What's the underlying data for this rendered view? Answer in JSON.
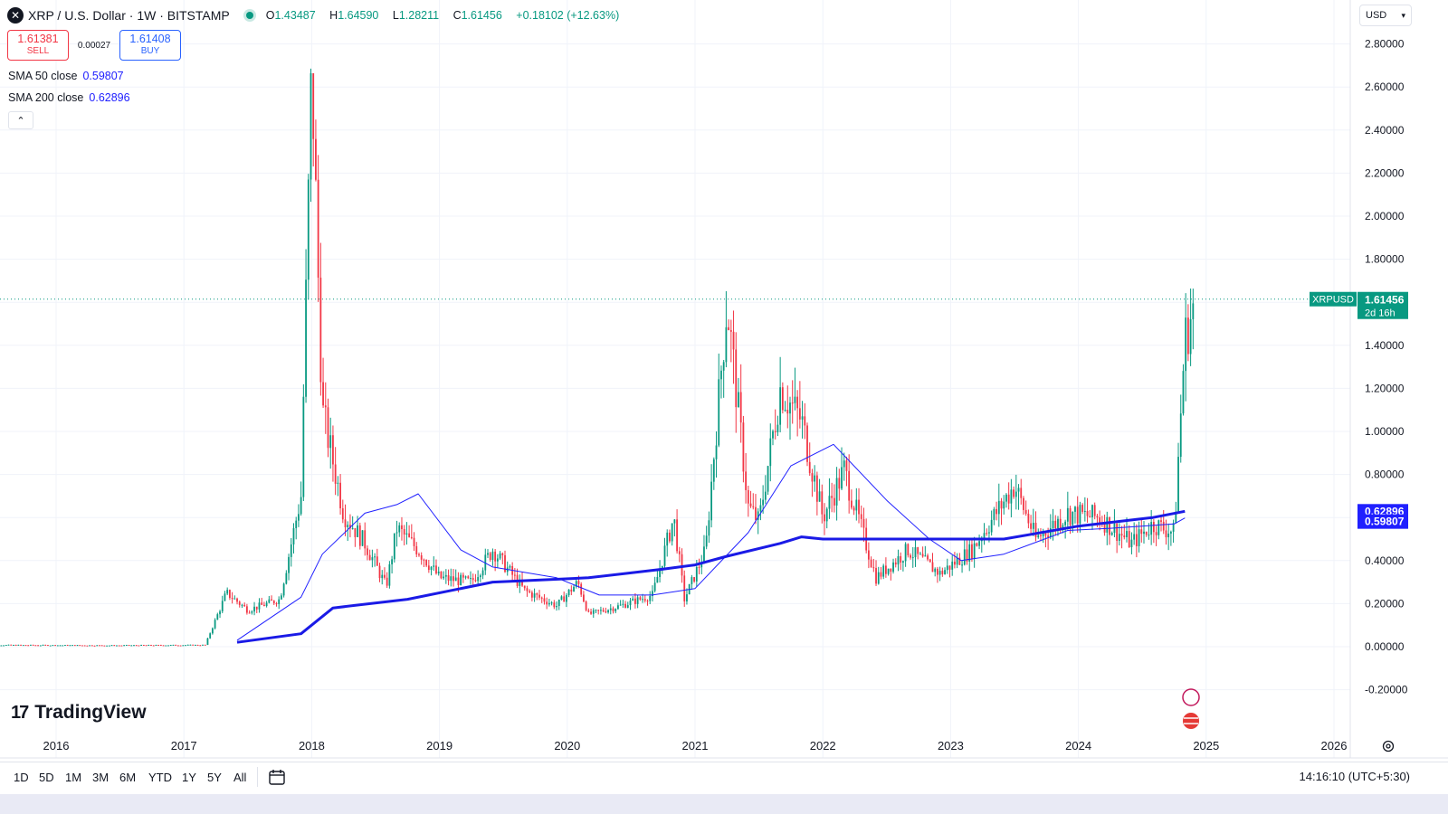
{
  "header": {
    "symbol_icon": "xrp-logo-icon",
    "title": "XRP / U.S. Dollar · 1W · BITSTAMP",
    "ohlc": {
      "open_label": "O",
      "open": "1.43487",
      "high_label": "H",
      "high": "1.64590",
      "low_label": "L",
      "low": "1.28211",
      "close_label": "C",
      "close": "1.61456",
      "change": "+0.18102 (+12.63%)"
    }
  },
  "trade": {
    "sell_price": "1.61381",
    "sell_label": "SELL",
    "spread": "0.00027",
    "buy_price": "1.61408",
    "buy_label": "BUY"
  },
  "indicators": [
    {
      "label": "SMA 50 close",
      "value": "0.59807"
    },
    {
      "label": "SMA 200 close",
      "value": "0.62896"
    }
  ],
  "currency": "USD",
  "logo_text": "TradingView",
  "timeframes": [
    "1D",
    "5D",
    "1M",
    "3M",
    "6M",
    "YTD",
    "1Y",
    "5Y",
    "All"
  ],
  "clock": "14:16:10 (UTC+5:30)",
  "colors": {
    "up": "#089981",
    "down": "#f23645",
    "sma50": "#2020ff",
    "sma200": "#1a1ae6",
    "price_label": "#089981",
    "sma_label": "#2020ff"
  },
  "chart_data": {
    "type": "candlestick",
    "symbol": "XRPUSD",
    "interval": "1W",
    "grid": true,
    "x_ticks": [
      "2016",
      "2017",
      "2018",
      "2019",
      "2020",
      "2021",
      "2022",
      "2023",
      "2024",
      "2025",
      "2026"
    ],
    "y_ticks": [
      "2.80000",
      "2.60000",
      "2.40000",
      "2.20000",
      "2.00000",
      "1.80000",
      "1.60000",
      "1.40000",
      "1.20000",
      "1.00000",
      "0.80000",
      "0.60000",
      "0.40000",
      "0.20000",
      "0.00000",
      "-0.20000"
    ],
    "ylim": [
      -0.28,
      2.9
    ],
    "last_price": {
      "label": "XRPUSD",
      "value": "1.61456",
      "countdown": "2d 16h"
    },
    "sma_labels": [
      "0.62896",
      "0.59807"
    ],
    "price_path": [
      [
        "2015-06",
        0.008
      ],
      [
        "2016-06",
        0.006
      ],
      [
        "2017-03",
        0.008
      ],
      [
        "2017-05",
        0.25
      ],
      [
        "2017-07",
        0.17
      ],
      [
        "2017-10",
        0.22
      ],
      [
        "2017-12",
        0.7
      ],
      [
        "2018-01",
        2.7
      ],
      [
        "2018-02",
        1.1
      ],
      [
        "2018-04",
        0.62
      ],
      [
        "2018-06",
        0.48
      ],
      [
        "2018-08",
        0.28
      ],
      [
        "2018-09",
        0.55
      ],
      [
        "2018-11",
        0.45
      ],
      [
        "2019-01",
        0.32
      ],
      [
        "2019-04",
        0.3
      ],
      [
        "2019-06",
        0.45
      ],
      [
        "2019-09",
        0.26
      ],
      [
        "2019-12",
        0.19
      ],
      [
        "2020-02",
        0.3
      ],
      [
        "2020-03",
        0.15
      ],
      [
        "2020-06",
        0.19
      ],
      [
        "2020-09",
        0.24
      ],
      [
        "2020-11",
        0.6
      ],
      [
        "2020-12",
        0.22
      ],
      [
        "2021-02",
        0.45
      ],
      [
        "2021-04",
        1.6
      ],
      [
        "2021-06",
        0.65
      ],
      [
        "2021-07",
        0.58
      ],
      [
        "2021-09",
        1.2
      ],
      [
        "2021-11",
        1.05
      ],
      [
        "2022-01",
        0.6
      ],
      [
        "2022-03",
        0.82
      ],
      [
        "2022-06",
        0.32
      ],
      [
        "2022-09",
        0.45
      ],
      [
        "2022-12",
        0.34
      ],
      [
        "2023-03",
        0.45
      ],
      [
        "2023-07",
        0.75
      ],
      [
        "2023-09",
        0.5
      ],
      [
        "2023-12",
        0.62
      ],
      [
        "2024-03",
        0.6
      ],
      [
        "2024-06",
        0.48
      ],
      [
        "2024-08",
        0.57
      ],
      [
        "2024-10",
        0.53
      ],
      [
        "2024-11",
        1.43
      ],
      [
        "2024-12",
        1.61
      ]
    ],
    "series": [
      {
        "name": "SMA 50 close",
        "color": "#2020ff",
        "width": 1,
        "values": [
          [
            "2017-06",
            0.03
          ],
          [
            "2017-12",
            0.23
          ],
          [
            "2018-02",
            0.43
          ],
          [
            "2018-06",
            0.62
          ],
          [
            "2018-09",
            0.66
          ],
          [
            "2018-11",
            0.71
          ],
          [
            "2019-03",
            0.45
          ],
          [
            "2019-06",
            0.37
          ],
          [
            "2019-12",
            0.32
          ],
          [
            "2020-04",
            0.24
          ],
          [
            "2020-09",
            0.24
          ],
          [
            "2021-01",
            0.27
          ],
          [
            "2021-06",
            0.53
          ],
          [
            "2021-10",
            0.84
          ],
          [
            "2022-02",
            0.94
          ],
          [
            "2022-07",
            0.68
          ],
          [
            "2022-11",
            0.5
          ],
          [
            "2023-02",
            0.4
          ],
          [
            "2023-06",
            0.43
          ],
          [
            "2023-12",
            0.54
          ],
          [
            "2024-04",
            0.55
          ],
          [
            "2024-10",
            0.57
          ],
          [
            "2024-11",
            0.598
          ]
        ]
      },
      {
        "name": "SMA 200 close",
        "color": "#1a1ae6",
        "width": 3,
        "values": [
          [
            "2017-06",
            0.02
          ],
          [
            "2017-12",
            0.06
          ],
          [
            "2018-03",
            0.18
          ],
          [
            "2018-10",
            0.22
          ],
          [
            "2019-06",
            0.3
          ],
          [
            "2020-03",
            0.32
          ],
          [
            "2020-10",
            0.36
          ],
          [
            "2021-01",
            0.38
          ],
          [
            "2021-04",
            0.42
          ],
          [
            "2021-09",
            0.48
          ],
          [
            "2021-11",
            0.51
          ],
          [
            "2022-01",
            0.5
          ],
          [
            "2023-02",
            0.5
          ],
          [
            "2023-06",
            0.5
          ],
          [
            "2024-01",
            0.56
          ],
          [
            "2024-08",
            0.6
          ],
          [
            "2024-11",
            0.629
          ]
        ]
      }
    ]
  }
}
